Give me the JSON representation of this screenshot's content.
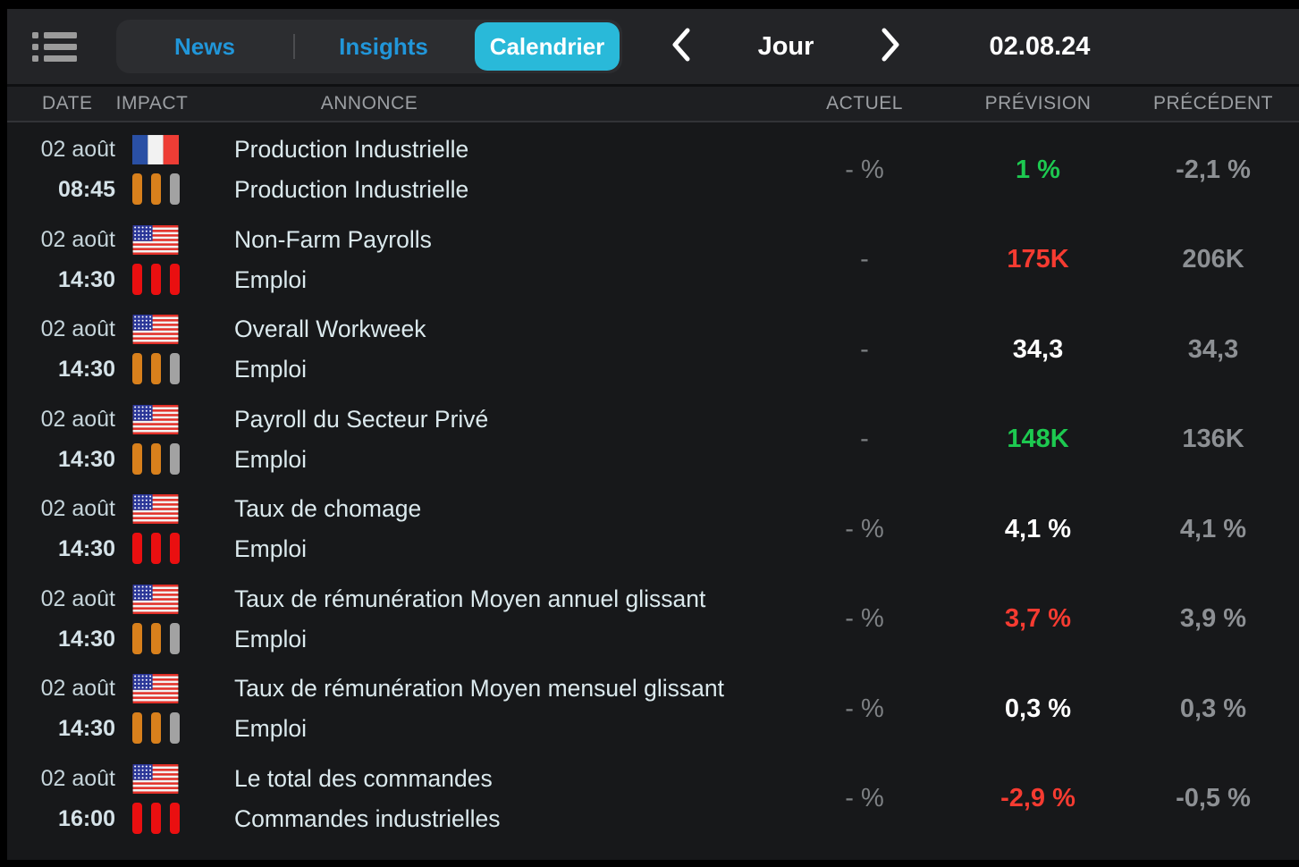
{
  "topbar": {
    "menu_icon": "list-icon",
    "tabs": [
      {
        "label": "News",
        "active": false
      },
      {
        "label": "Insights",
        "active": false
      },
      {
        "label": "Calendrier",
        "active": true
      }
    ],
    "prev_icon": "chevron-left-icon",
    "next_icon": "chevron-right-icon",
    "period_label": "Jour",
    "date_label": "02.08.24"
  },
  "table": {
    "columns": [
      "DATE",
      "IMPACT",
      "ANNONCE",
      "ACTUEL",
      "PRÉVISION",
      "PRÉCÉDENT"
    ],
    "rows": [
      {
        "date": "02 août",
        "time": "08:45",
        "country": "fr",
        "impact": "medium",
        "title": "Production Industrielle",
        "category": "Production Industrielle",
        "actual": "- %",
        "forecast": "1 %",
        "forecast_color": "green",
        "previous": "-2,1 %"
      },
      {
        "date": "02 août",
        "time": "14:30",
        "country": "us",
        "impact": "high",
        "title": "Non-Farm Payrolls",
        "category": "Emploi",
        "actual": "-",
        "forecast": "175K",
        "forecast_color": "red",
        "previous": "206K"
      },
      {
        "date": "02 août",
        "time": "14:30",
        "country": "us",
        "impact": "medium",
        "title": "Overall Workweek",
        "category": "Emploi",
        "actual": "-",
        "forecast": "34,3",
        "forecast_color": "white",
        "previous": "34,3"
      },
      {
        "date": "02 août",
        "time": "14:30",
        "country": "us",
        "impact": "medium",
        "title": "Payroll du Secteur Privé",
        "category": "Emploi",
        "actual": "-",
        "forecast": "148K",
        "forecast_color": "green",
        "previous": "136K"
      },
      {
        "date": "02 août",
        "time": "14:30",
        "country": "us",
        "impact": "high",
        "title": "Taux de chomage",
        "category": "Emploi",
        "actual": "- %",
        "forecast": "4,1 %",
        "forecast_color": "white",
        "previous": "4,1 %"
      },
      {
        "date": "02 août",
        "time": "14:30",
        "country": "us",
        "impact": "medium",
        "title": "Taux de rémunération Moyen annuel glissant",
        "category": "Emploi",
        "actual": "- %",
        "forecast": "3,7 %",
        "forecast_color": "red",
        "previous": "3,9 %"
      },
      {
        "date": "02 août",
        "time": "14:30",
        "country": "us",
        "impact": "medium",
        "title": "Taux de rémunération Moyen mensuel glissant",
        "category": "Emploi",
        "actual": "- %",
        "forecast": "0,3 %",
        "forecast_color": "white",
        "previous": "0,3 %"
      },
      {
        "date": "02 août",
        "time": "16:00",
        "country": "us",
        "impact": "high",
        "title": "Le total des commandes",
        "category": "Commandes industrielles",
        "actual": "- %",
        "forecast": "-2,9 %",
        "forecast_color": "red",
        "previous": "-0,5 %"
      }
    ]
  },
  "impact_levels": {
    "high": [
      "high",
      "high",
      "high"
    ],
    "medium": [
      "medium",
      "medium",
      "off"
    ]
  },
  "colors": {
    "accent_tab": "#29b9d9",
    "tab_text": "#2196d9",
    "green": "#1dc950",
    "red": "#f63b31",
    "impact_high": "#ea0f10",
    "impact_medium": "#d8801c",
    "impact_off": "#a2a2a2"
  }
}
